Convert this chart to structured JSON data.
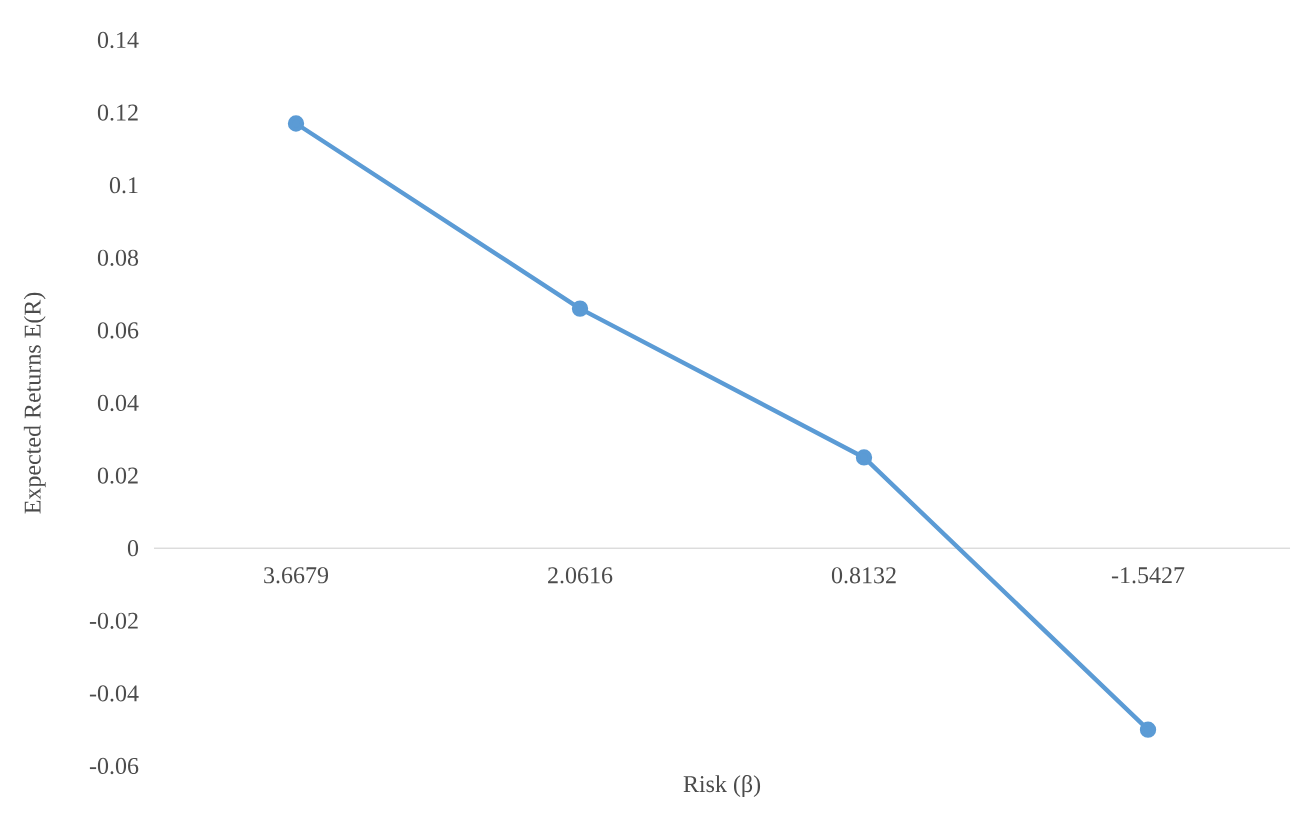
{
  "chart_data": {
    "type": "line",
    "xlabel": "Risk (β)",
    "ylabel": "Expected Returns E(R)",
    "categories": [
      "3.6679",
      "2.0616",
      "0.8132",
      "-1.5427"
    ],
    "series": [
      {
        "color": "#5b9bd5",
        "values": [
          0.117,
          0.066,
          0.025,
          -0.05
        ]
      }
    ],
    "ylim": [
      -0.06,
      0.14
    ],
    "yticks": [
      -0.06,
      -0.04,
      -0.02,
      0,
      0.02,
      0.04,
      0.06,
      0.08,
      0.1,
      0.12,
      0.14
    ],
    "marker": "circle",
    "line_style": "solid"
  }
}
